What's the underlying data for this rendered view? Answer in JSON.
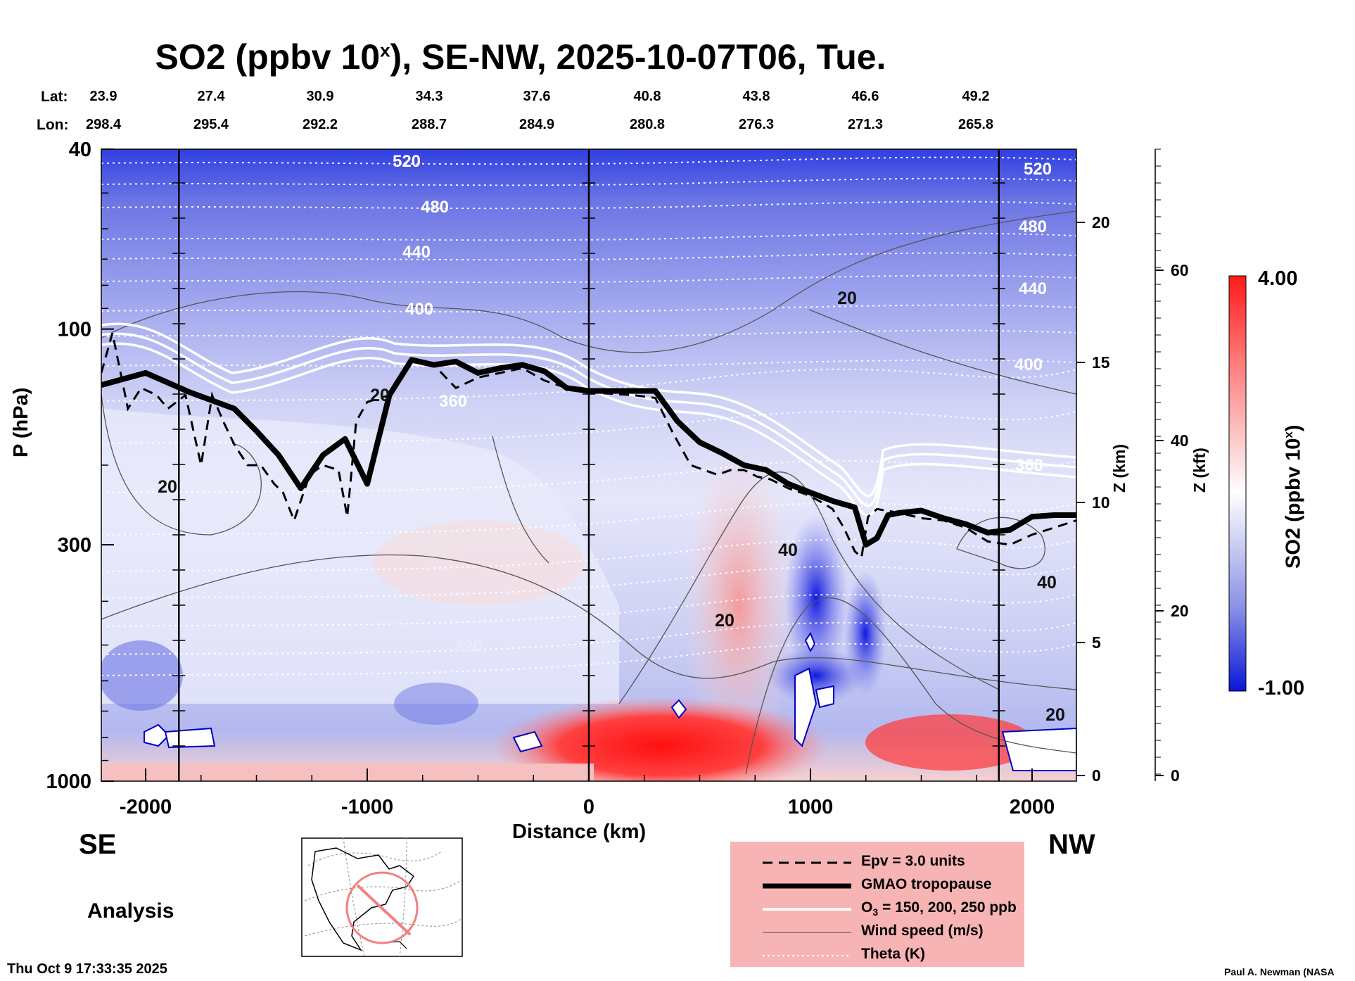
{
  "title": {
    "prefix": "SO2 (ppbv 10",
    "sup": "x",
    "suffix": "), SE-NW, 2025-10-07T06, Tue."
  },
  "geo": {
    "lat_label": "Lat:",
    "lon_label": "Lon:",
    "lat": [
      "23.9",
      "27.4",
      "30.9",
      "34.3",
      "37.6",
      "40.8",
      "43.8",
      "46.6",
      "49.2"
    ],
    "lon": [
      "298.4",
      "295.4",
      "292.2",
      "288.7",
      "284.9",
      "280.8",
      "276.3",
      "271.3",
      "265.8"
    ]
  },
  "axes": {
    "y_label": "P (hPa)",
    "y_ticks": [
      "40",
      "100",
      "300",
      "1000"
    ],
    "x_label": "Distance (km)",
    "x_ticks": [
      "-2000",
      "-1000",
      "0",
      "1000",
      "2000"
    ],
    "z_km_label": "Z (km)",
    "z_km_ticks": [
      "20",
      "15",
      "10",
      "5",
      "0"
    ],
    "z_kft_label": "Z (kft)",
    "z_kft_ticks": [
      "60",
      "40",
      "20",
      "0"
    ]
  },
  "colorbar": {
    "label": "SO2 (ppbv 10",
    "sup": "x",
    "label_end": ")",
    "max": "4.00",
    "min": "-1.00",
    "max_color": "#ff0000",
    "min_color": "#0000e0"
  },
  "direction": {
    "left": "SE",
    "right": "NW"
  },
  "analysis_label": "Analysis",
  "legend": [
    {
      "label": "Epv = 3.0 units"
    },
    {
      "label": "GMAO tropopause"
    },
    {
      "label": "O",
      "sub": "3",
      "rest": " = 150, 200, 250 ppb"
    },
    {
      "label": "Wind speed (m/s)"
    },
    {
      "label": "Theta (K)"
    }
  ],
  "contour_labels": {
    "theta": [
      "520",
      "480",
      "440",
      "400",
      "360",
      "320",
      "520",
      "480",
      "440",
      "400",
      "360"
    ],
    "wind": [
      "20",
      "20",
      "20",
      "40",
      "20",
      "40",
      "20"
    ]
  },
  "footer": {
    "timestamp": "Thu Oct  9 17:33:35 2025",
    "credit": "Paul A. Newman (NASA"
  },
  "chart_data": {
    "type": "heatmap",
    "title": "SO2 (ppbv 10^x), SE-NW, 2025-10-07T06, Tue.",
    "xlabel": "Distance (km)",
    "ylabel": "P (hPa)",
    "xlim": [
      -2200,
      2200
    ],
    "ylim": [
      1000,
      40
    ],
    "y_scale": "log",
    "color_range": [
      -1.0,
      4.0
    ],
    "tropopause": {
      "x": [
        -2200,
        -2000,
        -1800,
        -1600,
        -1500,
        -1400,
        -1300,
        -1200,
        -1100,
        -1000,
        -900,
        -800,
        -700,
        -600,
        -500,
        -400,
        -300,
        -200,
        -100,
        0,
        100,
        300,
        400,
        500,
        600,
        700,
        800,
        900,
        1000,
        1100,
        1200,
        1250,
        1300,
        1350,
        1400,
        1500,
        1600,
        1700,
        1800,
        1900,
        2000,
        2100,
        2200
      ],
      "p": [
        133,
        125,
        138,
        150,
        168,
        190,
        225,
        190,
        175,
        220,
        140,
        117,
        120,
        118,
        125,
        122,
        120,
        124,
        135,
        137,
        137,
        137,
        160,
        178,
        188,
        200,
        205,
        220,
        230,
        240,
        248,
        300,
        290,
        258,
        255,
        252,
        262,
        270,
        282,
        278,
        260,
        258,
        258
      ]
    },
    "theta_levels_K": [
      520,
      480,
      440,
      400,
      360,
      320
    ],
    "wind_speed_levels_ms": [
      20,
      40
    ]
  }
}
